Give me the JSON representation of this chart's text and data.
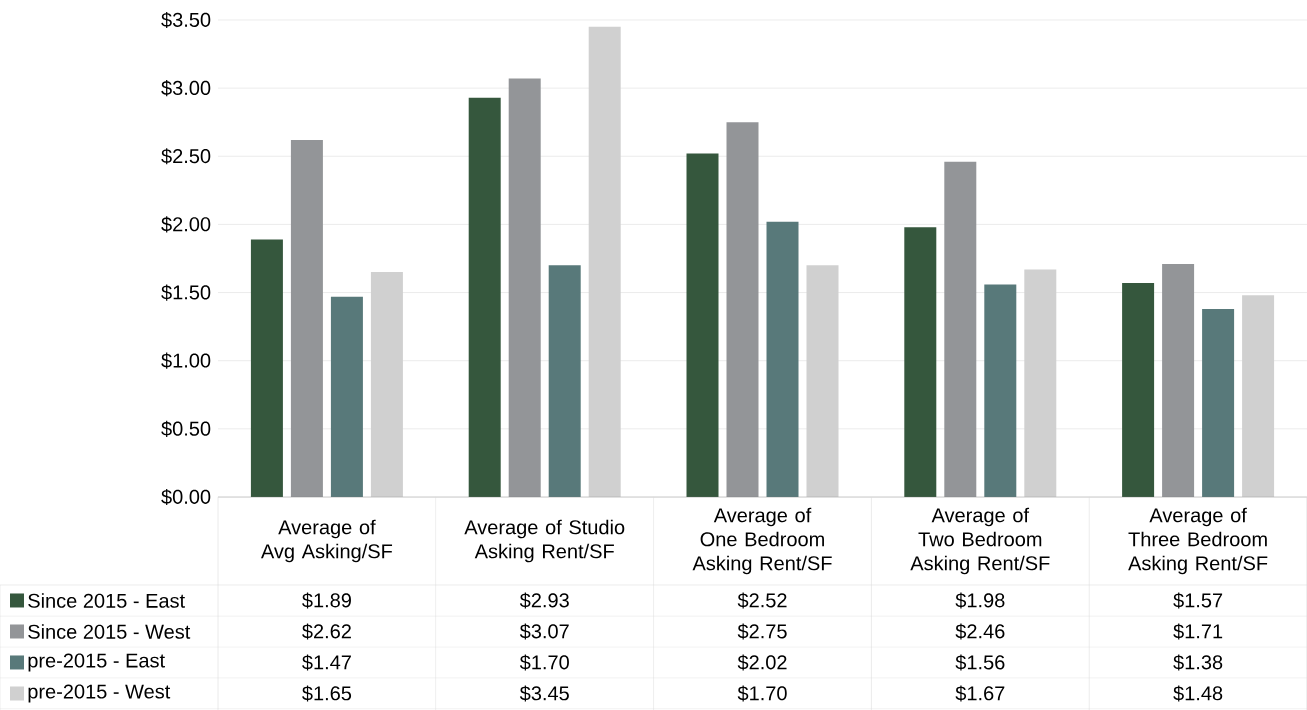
{
  "chart_data": {
    "type": "bar",
    "categories": [
      "Average of Avg Asking/SF",
      "Average of Studio Asking Rent/SF",
      "Average of One Bedroom Asking Rent/SF",
      "Average of Two Bedroom Asking Rent/SF",
      "Average of Three Bedroom Asking Rent/SF"
    ],
    "series": [
      {
        "name": "Since 2015 - East",
        "color": "#35573d",
        "values": [
          1.89,
          2.93,
          2.52,
          1.98,
          1.57
        ],
        "value_labels": [
          "$1.89",
          "$2.93",
          "$2.52",
          "$1.98",
          "$1.57"
        ]
      },
      {
        "name": "Since 2015 - West",
        "color": "#939598",
        "values": [
          2.62,
          3.07,
          2.75,
          2.46,
          1.71
        ],
        "value_labels": [
          "$2.62",
          "$3.07",
          "$2.75",
          "$2.46",
          "$1.71"
        ]
      },
      {
        "name": "pre-2015 - East",
        "color": "#58797a",
        "values": [
          1.47,
          1.7,
          2.02,
          1.56,
          1.38
        ],
        "value_labels": [
          "$1.47",
          "$1.70",
          "$2.02",
          "$1.56",
          "$1.38"
        ]
      },
      {
        "name": "pre-2015 - West",
        "color": "#d0d0d0",
        "values": [
          1.65,
          3.45,
          1.7,
          1.67,
          1.48
        ],
        "value_labels": [
          "$1.65",
          "$3.45",
          "$1.70",
          "$1.67",
          "$1.48"
        ]
      }
    ],
    "ylim": [
      0,
      3.5
    ],
    "yticks": [
      {
        "value": 0,
        "label": "$0.00"
      },
      {
        "value": 0.5,
        "label": "$0.50"
      },
      {
        "value": 1,
        "label": "$1.00"
      },
      {
        "value": 1.5,
        "label": "$1.50"
      },
      {
        "value": 2,
        "label": "$2.00"
      },
      {
        "value": 2.5,
        "label": "$2.50"
      },
      {
        "value": 3,
        "label": "$3.00"
      },
      {
        "value": 3.5,
        "label": "$3.50"
      }
    ],
    "grid": "y",
    "legend": "bottom"
  }
}
